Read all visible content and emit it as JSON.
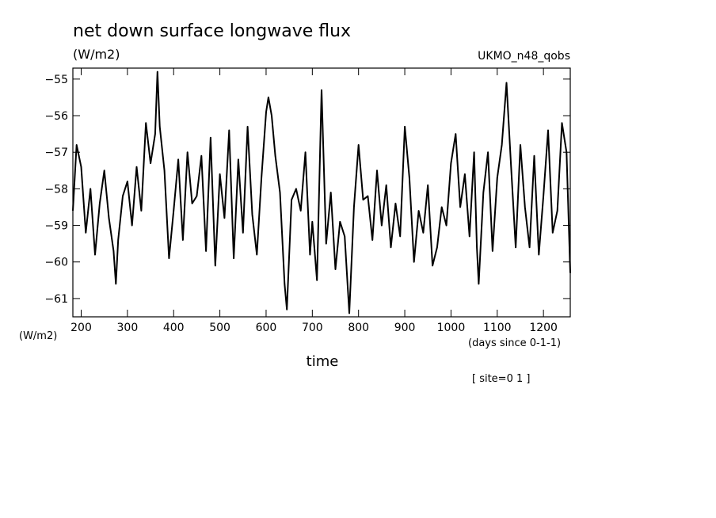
{
  "chart_data": {
    "type": "line",
    "title": "net down surface longwave flux",
    "subtitle": "(W/m2)",
    "dataset_label": "UKMO_n48_qobs",
    "ylabel": "(W/m2)",
    "xlabel": "time",
    "x_units": "(days since 0-1-1)",
    "footnote": "[ site=0 1 ]",
    "xlim": [
      182,
      1258
    ],
    "ylim": [
      -61.5,
      -54.7
    ],
    "xticks": [
      200,
      300,
      400,
      500,
      600,
      700,
      800,
      900,
      1000,
      1100,
      1200
    ],
    "yticks": [
      -55,
      -56,
      -57,
      -58,
      -59,
      -60,
      -61
    ],
    "grid": false,
    "line_color": "#000000",
    "series": [
      {
        "x": [
          182,
          190,
          200,
          210,
          220,
          230,
          240,
          250,
          260,
          270,
          275,
          280,
          290,
          300,
          310,
          320,
          330,
          340,
          350,
          360,
          365,
          370,
          380,
          390,
          400,
          410,
          420,
          430,
          440,
          450,
          460,
          470,
          480,
          490,
          500,
          510,
          520,
          530,
          540,
          550,
          560,
          570,
          580,
          590,
          600,
          605,
          612,
          620,
          630,
          640,
          645,
          655,
          665,
          675,
          685,
          695,
          700,
          710,
          720,
          730,
          740,
          750,
          760,
          770,
          780,
          790,
          800,
          810,
          820,
          830,
          840,
          850,
          860,
          870,
          880,
          890,
          900,
          910,
          920,
          930,
          940,
          950,
          960,
          970,
          980,
          990,
          1000,
          1010,
          1020,
          1030,
          1040,
          1050,
          1056,
          1060,
          1070,
          1080,
          1090,
          1100,
          1110,
          1120,
          1130,
          1140,
          1150,
          1160,
          1170,
          1180,
          1190,
          1200,
          1210,
          1220,
          1230,
          1240,
          1250,
          1258
        ],
        "values": [
          -58.6,
          -56.8,
          -57.4,
          -59.2,
          -58.0,
          -59.8,
          -58.4,
          -57.5,
          -58.8,
          -59.7,
          -60.6,
          -59.4,
          -58.2,
          -57.8,
          -59.0,
          -57.4,
          -58.6,
          -56.2,
          -57.3,
          -56.5,
          -54.8,
          -56.3,
          -57.5,
          -59.9,
          -58.6,
          -57.2,
          -59.4,
          -57.0,
          -58.4,
          -58.2,
          -57.1,
          -59.7,
          -56.6,
          -60.1,
          -57.6,
          -58.8,
          -56.4,
          -59.9,
          -57.2,
          -59.2,
          -56.3,
          -58.7,
          -59.8,
          -57.7,
          -55.9,
          -55.5,
          -56.0,
          -57.1,
          -58.1,
          -60.6,
          -61.3,
          -58.3,
          -58.0,
          -58.6,
          -57.0,
          -59.8,
          -58.9,
          -60.5,
          -55.3,
          -59.5,
          -58.1,
          -60.2,
          -58.9,
          -59.3,
          -61.4,
          -58.5,
          -56.8,
          -58.3,
          -58.2,
          -59.4,
          -57.5,
          -59.0,
          -57.9,
          -59.6,
          -58.4,
          -59.3,
          -56.3,
          -57.7,
          -60.0,
          -58.6,
          -59.2,
          -57.9,
          -60.1,
          -59.6,
          -58.5,
          -59.0,
          -57.3,
          -56.5,
          -58.5,
          -57.6,
          -59.3,
          -57.0,
          -59.6,
          -60.6,
          -58.1,
          -57.0,
          -59.7,
          -57.7,
          -56.8,
          -55.1,
          -57.4,
          -59.6,
          -56.8,
          -58.5,
          -59.6,
          -57.1,
          -59.8,
          -58.2,
          -56.4,
          -59.2,
          -58.6,
          -56.2,
          -57.0,
          -60.3
        ]
      }
    ]
  }
}
